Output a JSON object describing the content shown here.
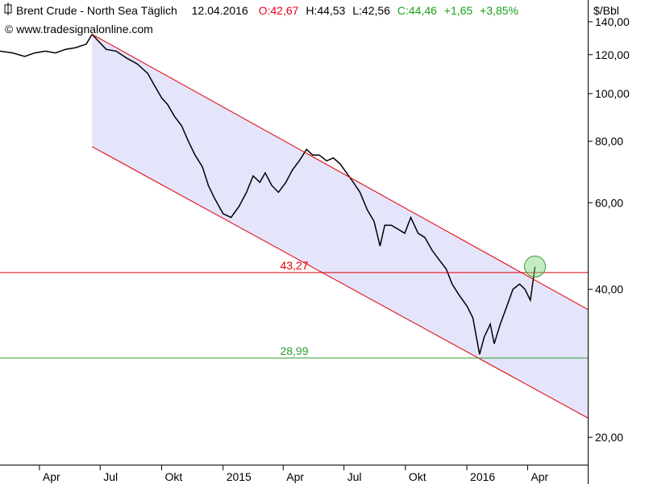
{
  "header": {
    "instrument": "Brent Crude - North Sea Täglich",
    "date": "12.04.2016",
    "open": "O:42,67",
    "high": "H:44,53",
    "low": "L:42,56",
    "close": "C:44,46",
    "change": "+1,65",
    "change_pct": "+3,85%",
    "copyright": "© www.tradesignalonline.com",
    "unit": "$/Bbl"
  },
  "colors": {
    "open": "#e8001c",
    "close_positive": "#1a9e1a",
    "channel_line": "#e00000",
    "channel_fill": "#e4e4fb",
    "resistance": "#e00000",
    "support": "#2e9c2e",
    "candles": "#000000",
    "highlight_circle": "#7fd27f"
  },
  "chart_data": {
    "type": "line",
    "title": "Brent Crude - North Sea Täglich",
    "ylabel": "$/Bbl",
    "y_scale": "log",
    "ylim": [
      17.6,
      155
    ],
    "y_ticks": [
      {
        "value": 140,
        "label": "140,00"
      },
      {
        "value": 120,
        "label": "120,00"
      },
      {
        "value": 100,
        "label": "100,00"
      },
      {
        "value": 80,
        "label": "80,00"
      },
      {
        "value": 60,
        "label": "60,00"
      },
      {
        "value": 40,
        "label": "40,00"
      },
      {
        "value": 20,
        "label": "20,00"
      }
    ],
    "xlim": [
      "2014-02-01",
      "2016-06-30"
    ],
    "x_ticks": [
      {
        "date": "2014-04-01",
        "label": "Apr"
      },
      {
        "date": "2014-07-01",
        "label": "Jul"
      },
      {
        "date": "2014-10-01",
        "label": "Okt"
      },
      {
        "date": "2015-01-01",
        "label": "2015"
      },
      {
        "date": "2015-04-01",
        "label": "Apr"
      },
      {
        "date": "2015-07-01",
        "label": "Jul"
      },
      {
        "date": "2015-10-01",
        "label": "Okt"
      },
      {
        "date": "2016-01-01",
        "label": "2016"
      },
      {
        "date": "2016-04-01",
        "label": "Apr"
      }
    ],
    "series": [
      {
        "values": [
          [
            "2014-02-01",
            122
          ],
          [
            "2014-02-20",
            121
          ],
          [
            "2014-03-10",
            119
          ],
          [
            "2014-03-25",
            121
          ],
          [
            "2014-04-10",
            122
          ],
          [
            "2014-04-25",
            121
          ],
          [
            "2014-05-10",
            123
          ],
          [
            "2014-05-25",
            124
          ],
          [
            "2014-06-10",
            126
          ],
          [
            "2014-06-19",
            132
          ],
          [
            "2014-06-28",
            128
          ],
          [
            "2014-07-10",
            123
          ],
          [
            "2014-07-25",
            122
          ],
          [
            "2014-08-10",
            118
          ],
          [
            "2014-08-25",
            115
          ],
          [
            "2014-09-10",
            110
          ],
          [
            "2014-09-20",
            104
          ],
          [
            "2014-10-01",
            98
          ],
          [
            "2014-10-10",
            95
          ],
          [
            "2014-10-20",
            90
          ],
          [
            "2014-10-31",
            86
          ],
          [
            "2014-11-10",
            80
          ],
          [
            "2014-11-20",
            75
          ],
          [
            "2014-12-01",
            71
          ],
          [
            "2014-12-10",
            65
          ],
          [
            "2014-12-20",
            61
          ],
          [
            "2015-01-01",
            57
          ],
          [
            "2015-01-13",
            56
          ],
          [
            "2015-01-25",
            59
          ],
          [
            "2015-02-05",
            63
          ],
          [
            "2015-02-15",
            68
          ],
          [
            "2015-02-25",
            66
          ],
          [
            "2015-03-05",
            69
          ],
          [
            "2015-03-15",
            65
          ],
          [
            "2015-03-25",
            63
          ],
          [
            "2015-04-05",
            66
          ],
          [
            "2015-04-15",
            70
          ],
          [
            "2015-04-25",
            73
          ],
          [
            "2015-05-06",
            77
          ],
          [
            "2015-05-15",
            75
          ],
          [
            "2015-05-25",
            75
          ],
          [
            "2015-06-05",
            73
          ],
          [
            "2015-06-15",
            74
          ],
          [
            "2015-06-25",
            72
          ],
          [
            "2015-07-05",
            69
          ],
          [
            "2015-07-15",
            66
          ],
          [
            "2015-07-25",
            63
          ],
          [
            "2015-08-05",
            58
          ],
          [
            "2015-08-15",
            55
          ],
          [
            "2015-08-24",
            49
          ],
          [
            "2015-08-31",
            54
          ],
          [
            "2015-09-10",
            54
          ],
          [
            "2015-09-20",
            53
          ],
          [
            "2015-09-30",
            52
          ],
          [
            "2015-10-09",
            56
          ],
          [
            "2015-10-20",
            52
          ],
          [
            "2015-10-30",
            51
          ],
          [
            "2015-11-10",
            48
          ],
          [
            "2015-11-20",
            46
          ],
          [
            "2015-12-01",
            44
          ],
          [
            "2015-12-10",
            41
          ],
          [
            "2015-12-20",
            39
          ],
          [
            "2016-01-01",
            37
          ],
          [
            "2016-01-10",
            35
          ],
          [
            "2016-01-20",
            29.5
          ],
          [
            "2016-01-27",
            32
          ],
          [
            "2016-02-05",
            34
          ],
          [
            "2016-02-11",
            31
          ],
          [
            "2016-02-20",
            34
          ],
          [
            "2016-03-01",
            37
          ],
          [
            "2016-03-10",
            40
          ],
          [
            "2016-03-20",
            41
          ],
          [
            "2016-03-28",
            40
          ],
          [
            "2016-04-05",
            38
          ],
          [
            "2016-04-12",
            44.46
          ]
        ]
      }
    ],
    "annotations": {
      "resistance": {
        "value": 43.27,
        "label": "43,27"
      },
      "support": {
        "value": 28.99,
        "label": "28,99"
      },
      "channel": {
        "upper": {
          "start": [
            "2014-06-19",
            132
          ],
          "end": [
            "2016-06-30",
            36.4
          ]
        },
        "lower": {
          "start": [
            "2014-06-19",
            78
          ],
          "end": [
            "2016-06-30",
            21.9
          ]
        }
      },
      "highlight": {
        "date": "2016-04-12",
        "value": 44.5
      }
    }
  }
}
